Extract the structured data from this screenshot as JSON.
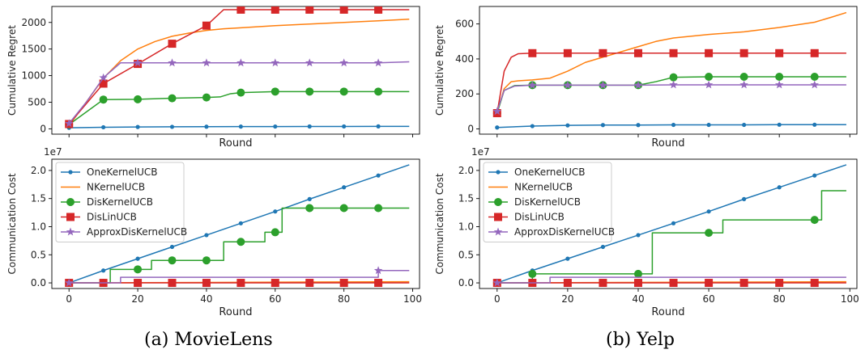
{
  "figure": {
    "caption_a": "(a)  MovieLens",
    "caption_b": "(b)  Yelp",
    "legend": [
      "OneKernelUCB",
      "NKernelUCB",
      "DisKernelUCB",
      "DisLinUCB",
      "ApproxDisKernelUCB"
    ],
    "colors": {
      "OneKernelUCB": "#1f77b4",
      "NKernelUCB": "#ff7f0e",
      "DisKernelUCB": "#2ca02c",
      "DisLinUCB": "#d62728",
      "ApproxDisKernelUCB": "#9467bd"
    }
  },
  "chart_data": [
    {
      "id": "movielens_regret",
      "type": "line",
      "title": "",
      "xlabel": "Round",
      "ylabel": "Cumulative Regret",
      "xlim": [
        -5,
        102
      ],
      "ylim": [
        -100,
        2300
      ],
      "xticks": [
        0,
        20,
        40,
        60,
        80,
        100
      ],
      "show_xtick_labels": false,
      "yticks": [
        0,
        500,
        1000,
        1500,
        2000
      ],
      "series": [
        {
          "name": "OneKernelUCB",
          "marker": "dot",
          "x": [
            0,
            10,
            20,
            30,
            40,
            50,
            60,
            70,
            80,
            90,
            99
          ],
          "y": [
            20,
            30,
            35,
            38,
            40,
            42,
            43,
            44,
            45,
            46,
            47
          ]
        },
        {
          "name": "NKernelUCB",
          "marker": "none",
          "x": [
            0,
            5,
            10,
            15,
            20,
            25,
            30,
            35,
            40,
            45,
            50,
            60,
            70,
            80,
            90,
            99
          ],
          "y": [
            60,
            500,
            950,
            1280,
            1500,
            1640,
            1740,
            1800,
            1850,
            1880,
            1900,
            1940,
            1970,
            2000,
            2030,
            2060
          ]
        },
        {
          "name": "DisKernelUCB",
          "marker": "circle",
          "x": [
            0,
            10,
            20,
            30,
            40,
            44,
            47,
            50,
            55,
            60,
            70,
            80,
            90,
            99
          ],
          "y": [
            80,
            550,
            555,
            575,
            590,
            600,
            660,
            680,
            690,
            700,
            700,
            700,
            700,
            700
          ]
        },
        {
          "name": "DisLinUCB",
          "marker": "square",
          "x": [
            0,
            10,
            20,
            30,
            40,
            45,
            50,
            60,
            70,
            80,
            90,
            99
          ],
          "y": [
            90,
            850,
            1220,
            1600,
            1940,
            2240,
            2240,
            2240,
            2240,
            2240,
            2240,
            2240
          ]
        },
        {
          "name": "ApproxDisKernelUCB",
          "marker": "star",
          "x": [
            0,
            5,
            10,
            15,
            20,
            30,
            40,
            50,
            60,
            70,
            80,
            90,
            99
          ],
          "y": [
            100,
            500,
            960,
            1240,
            1240,
            1240,
            1240,
            1240,
            1240,
            1240,
            1240,
            1240,
            1260
          ]
        }
      ]
    },
    {
      "id": "yelp_regret",
      "type": "line",
      "title": "",
      "xlabel": "Round",
      "ylabel": "Cumulative Regret",
      "xlim": [
        -5,
        102
      ],
      "ylim": [
        -30,
        700
      ],
      "xticks": [
        0,
        20,
        40,
        60,
        80,
        100
      ],
      "show_xtick_labels": false,
      "yticks": [
        0,
        200,
        400,
        600
      ],
      "series": [
        {
          "name": "OneKernelUCB",
          "marker": "dot",
          "x": [
            0,
            10,
            20,
            30,
            40,
            50,
            60,
            70,
            80,
            90,
            99
          ],
          "y": [
            8,
            16,
            20,
            22,
            22,
            23,
            23,
            23,
            24,
            24,
            24
          ]
        },
        {
          "name": "NKernelUCB",
          "marker": "none",
          "x": [
            0,
            2,
            4,
            6,
            10,
            15,
            20,
            25,
            30,
            35,
            40,
            45,
            50,
            60,
            70,
            80,
            90,
            95,
            99
          ],
          "y": [
            90,
            230,
            270,
            275,
            280,
            290,
            330,
            380,
            410,
            440,
            470,
            500,
            520,
            540,
            555,
            580,
            610,
            640,
            665
          ]
        },
        {
          "name": "DisKernelUCB",
          "marker": "circle",
          "x": [
            0,
            2,
            5,
            10,
            20,
            30,
            40,
            45,
            50,
            60,
            70,
            80,
            90,
            99
          ],
          "y": [
            90,
            220,
            248,
            250,
            250,
            250,
            250,
            270,
            295,
            298,
            298,
            298,
            298,
            298
          ]
        },
        {
          "name": "DisLinUCB",
          "marker": "square",
          "x": [
            0,
            2,
            4,
            6,
            10,
            20,
            30,
            40,
            50,
            60,
            70,
            80,
            90,
            99
          ],
          "y": [
            90,
            330,
            410,
            430,
            433,
            433,
            433,
            433,
            433,
            433,
            433,
            433,
            433,
            433
          ]
        },
        {
          "name": "ApproxDisKernelUCB",
          "marker": "star",
          "x": [
            0,
            2,
            5,
            10,
            20,
            30,
            40,
            50,
            60,
            70,
            80,
            90,
            99
          ],
          "y": [
            100,
            220,
            245,
            250,
            250,
            250,
            250,
            252,
            252,
            252,
            252,
            252,
            252
          ]
        }
      ]
    },
    {
      "id": "movielens_comm",
      "type": "line",
      "title": "",
      "xlabel": "Round",
      "ylabel": "Communication Cost",
      "scale_label": "1e7",
      "xlim": [
        -5,
        102
      ],
      "ylim": [
        -0.1,
        2.2
      ],
      "xticks": [
        0,
        20,
        40,
        60,
        80,
        100
      ],
      "show_xtick_labels": true,
      "yticks": [
        0.0,
        0.5,
        1.0,
        1.5,
        2.0
      ],
      "ytick_decimals": 1,
      "series": [
        {
          "name": "OneKernelUCB",
          "marker": "dot",
          "x": [
            0,
            10,
            20,
            30,
            40,
            50,
            60,
            70,
            80,
            90,
            99
          ],
          "y": [
            0.0,
            0.22,
            0.43,
            0.64,
            0.85,
            1.06,
            1.27,
            1.49,
            1.7,
            1.91,
            2.1
          ]
        },
        {
          "name": "NKernelUCB",
          "marker": "none",
          "x": [
            0,
            99
          ],
          "y": [
            0.0,
            0.02
          ]
        },
        {
          "name": "DisKernelUCB",
          "marker": "circle",
          "step": true,
          "x": [
            0,
            10,
            12,
            20,
            24,
            30,
            40,
            45,
            50,
            55,
            57,
            60,
            62,
            63,
            70,
            80,
            90,
            99
          ],
          "y": [
            0.0,
            0.0,
            0.24,
            0.24,
            0.4,
            0.4,
            0.4,
            0.73,
            0.73,
            0.73,
            0.9,
            0.9,
            1.33,
            1.33,
            1.33,
            1.33,
            1.33,
            1.33
          ]
        },
        {
          "name": "DisLinUCB",
          "marker": "square",
          "x": [
            0,
            10,
            20,
            30,
            40,
            50,
            60,
            70,
            80,
            90,
            99
          ],
          "y": [
            0.0,
            0.0,
            0.0,
            0.0,
            0.0,
            0.0,
            0.0,
            0.0,
            0.0,
            0.0,
            0.0
          ]
        },
        {
          "name": "ApproxDisKernelUCB",
          "marker": "star",
          "step": true,
          "x": [
            0,
            12,
            15,
            88,
            90,
            99
          ],
          "y": [
            0.0,
            0.0,
            0.1,
            0.1,
            0.22,
            0.22
          ]
        }
      ]
    },
    {
      "id": "yelp_comm",
      "type": "line",
      "title": "",
      "xlabel": "Round",
      "ylabel": "Communication Cost",
      "scale_label": "1e7",
      "xlim": [
        -5,
        102
      ],
      "ylim": [
        -0.1,
        2.2
      ],
      "xticks": [
        0,
        20,
        40,
        60,
        80,
        100
      ],
      "show_xtick_labels": true,
      "yticks": [
        0.0,
        0.5,
        1.0,
        1.5,
        2.0
      ],
      "ytick_decimals": 1,
      "series": [
        {
          "name": "OneKernelUCB",
          "marker": "dot",
          "x": [
            0,
            10,
            20,
            30,
            40,
            50,
            60,
            70,
            80,
            90,
            99
          ],
          "y": [
            0.0,
            0.22,
            0.43,
            0.64,
            0.85,
            1.06,
            1.27,
            1.49,
            1.7,
            1.91,
            2.1
          ]
        },
        {
          "name": "NKernelUCB",
          "marker": "none",
          "x": [
            0,
            99
          ],
          "y": [
            0.0,
            0.02
          ]
        },
        {
          "name": "DisKernelUCB",
          "marker": "circle",
          "step": true,
          "x": [
            0,
            5,
            10,
            40,
            44,
            60,
            64,
            90,
            92,
            99
          ],
          "y": [
            0.0,
            0.0,
            0.16,
            0.16,
            0.89,
            0.89,
            1.12,
            1.12,
            1.64,
            1.64
          ]
        },
        {
          "name": "DisLinUCB",
          "marker": "square",
          "x": [
            0,
            10,
            20,
            30,
            40,
            50,
            60,
            70,
            80,
            90,
            99
          ],
          "y": [
            0.0,
            0.0,
            0.0,
            0.0,
            0.0,
            0.0,
            0.0,
            0.0,
            0.0,
            0.0,
            0.0
          ]
        },
        {
          "name": "ApproxDisKernelUCB",
          "marker": "star",
          "step": true,
          "x": [
            0,
            12,
            15,
            99
          ],
          "y": [
            0.0,
            0.0,
            0.1,
            0.1
          ]
        }
      ]
    }
  ]
}
